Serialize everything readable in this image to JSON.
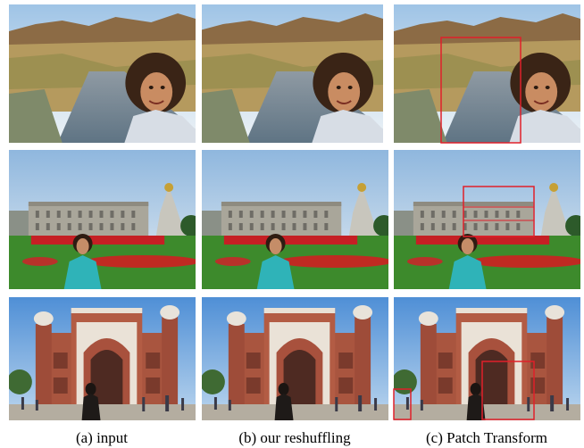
{
  "captions": [
    "(a) input",
    "(b) our reshuffling",
    "(c) Patch Transform"
  ]
}
